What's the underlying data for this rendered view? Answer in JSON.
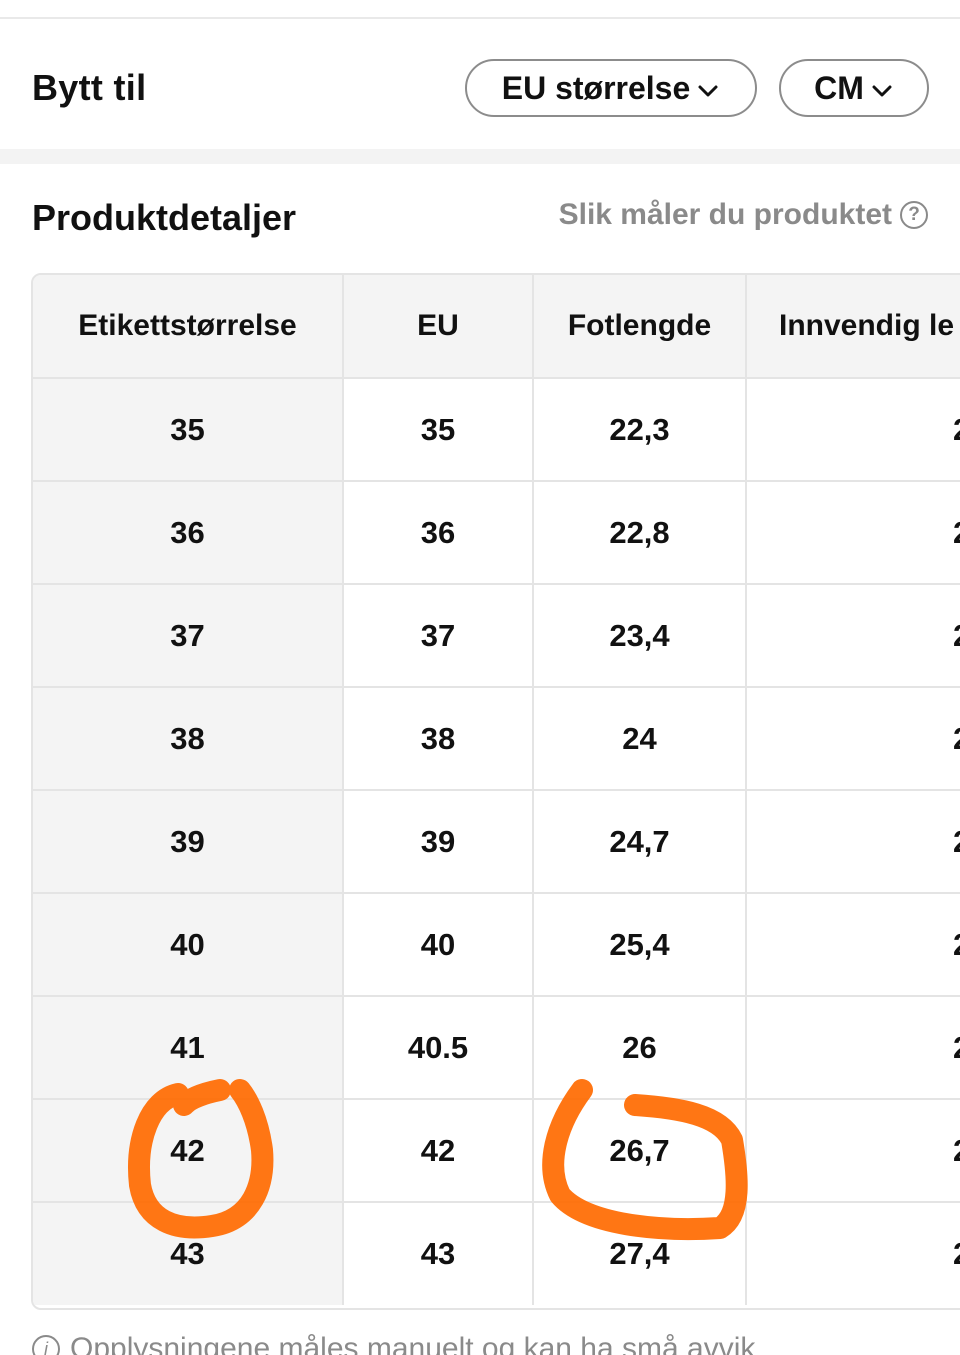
{
  "switch": {
    "title": "Bytt til",
    "size_system": "EU størrelse",
    "unit": "CM"
  },
  "details": {
    "title": "Produktdetaljer",
    "measure_link": "Slik måler du produktet",
    "help_icon": "?"
  },
  "table": {
    "headers": [
      "Etikettstørrelse",
      "EU",
      "Fotlengde",
      "Innvendig le"
    ],
    "rows": [
      [
        "35",
        "35",
        "22,3",
        "2"
      ],
      [
        "36",
        "36",
        "22,8",
        "2"
      ],
      [
        "37",
        "37",
        "23,4",
        "2"
      ],
      [
        "38",
        "38",
        "24",
        "2"
      ],
      [
        "39",
        "39",
        "24,7",
        "2"
      ],
      [
        "40",
        "40",
        "25,4",
        "2"
      ],
      [
        "41",
        "40.5",
        "26",
        "2"
      ],
      [
        "42",
        "42",
        "26,7",
        "2"
      ],
      [
        "43",
        "43",
        "27,4",
        "2"
      ]
    ]
  },
  "annotation": {
    "color": "#ff6a00",
    "circled": [
      "42",
      "26,7"
    ]
  },
  "footnote": {
    "icon": "i",
    "text": "Opplysningene måles manuelt og kan ha små avvik"
  }
}
